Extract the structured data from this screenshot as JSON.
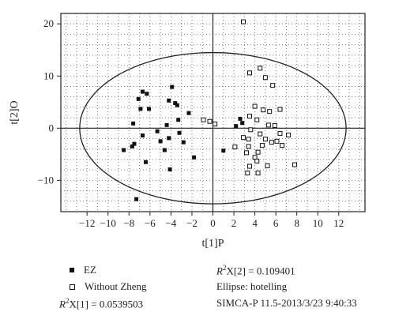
{
  "chart_data": {
    "type": "scatter",
    "xlabel": "t[1]P",
    "ylabel": "t[2]O",
    "xlim": [
      -14.5,
      14.5
    ],
    "ylim": [
      -16,
      22
    ],
    "xticks": [
      -12,
      -10,
      -8,
      -6,
      -4,
      -2,
      0,
      2,
      4,
      6,
      8,
      10,
      12
    ],
    "yticks": [
      -10,
      0,
      10,
      20
    ],
    "grid": "dotted",
    "ellipse": {
      "rx": 12.7,
      "ry": 14.5,
      "label": "Ellipse: hotelling"
    },
    "series": [
      {
        "name": "EZ",
        "marker": "filled-square",
        "points": [
          [
            -6.7,
            7.0
          ],
          [
            -6.3,
            6.6
          ],
          [
            -7.1,
            5.6
          ],
          [
            -6.9,
            3.7
          ],
          [
            -6.1,
            3.7
          ],
          [
            -7.6,
            0.9
          ],
          [
            -5.3,
            -0.6
          ],
          [
            -6.7,
            -1.4
          ],
          [
            -5.0,
            -2.5
          ],
          [
            -7.5,
            -3.0
          ],
          [
            -7.7,
            -3.5
          ],
          [
            -8.5,
            -4.2
          ],
          [
            -4.6,
            -4.2
          ],
          [
            -6.4,
            -6.5
          ],
          [
            -4.1,
            -7.9
          ],
          [
            -7.3,
            -13.6
          ],
          [
            -3.9,
            7.9
          ],
          [
            -4.2,
            5.3
          ],
          [
            -3.6,
            4.8
          ],
          [
            -3.4,
            4.4
          ],
          [
            -2.3,
            2.9
          ],
          [
            -3.3,
            1.6
          ],
          [
            -4.4,
            0.6
          ],
          [
            -3.2,
            -0.9
          ],
          [
            -4.2,
            -1.9
          ],
          [
            -2.8,
            -2.7
          ],
          [
            -1.8,
            -5.6
          ],
          [
            2.6,
            1.8
          ],
          [
            2.8,
            1.0
          ],
          [
            2.2,
            0.4
          ],
          [
            1.0,
            -4.3
          ]
        ]
      },
      {
        "name": "Without Zheng",
        "marker": "open-square",
        "points": [
          [
            2.9,
            20.4
          ],
          [
            4.5,
            11.5
          ],
          [
            3.5,
            10.6
          ],
          [
            5.0,
            9.7
          ],
          [
            5.7,
            8.2
          ],
          [
            4.0,
            4.2
          ],
          [
            4.8,
            3.5
          ],
          [
            6.4,
            3.6
          ],
          [
            5.4,
            3.2
          ],
          [
            3.5,
            2.3
          ],
          [
            4.2,
            1.6
          ],
          [
            5.3,
            0.6
          ],
          [
            5.9,
            0.5
          ],
          [
            3.6,
            -0.3
          ],
          [
            4.5,
            -1.1
          ],
          [
            6.4,
            -1.0
          ],
          [
            7.2,
            -1.3
          ],
          [
            2.9,
            -1.8
          ],
          [
            3.4,
            -2.1
          ],
          [
            5.0,
            -2.1
          ],
          [
            5.6,
            -2.7
          ],
          [
            6.1,
            -2.5
          ],
          [
            2.1,
            -3.6
          ],
          [
            3.4,
            -3.5
          ],
          [
            4.7,
            -3.3
          ],
          [
            6.6,
            -3.3
          ],
          [
            3.2,
            -4.7
          ],
          [
            4.3,
            -4.6
          ],
          [
            4.0,
            -5.6
          ],
          [
            4.2,
            -6.3
          ],
          [
            3.5,
            -7.3
          ],
          [
            3.3,
            -8.6
          ],
          [
            4.3,
            -8.6
          ],
          [
            5.2,
            -7.2
          ],
          [
            7.8,
            -7.0
          ],
          [
            -0.3,
            1.3
          ],
          [
            0.2,
            0.8
          ],
          [
            -0.9,
            1.6
          ]
        ]
      }
    ]
  },
  "footer": {
    "legend_ez": "EZ",
    "legend_without": "Without Zheng",
    "r2x1_prefix": "X[1] = 0.0539503",
    "r2x2_prefix": "X[2] = 0.109401",
    "r2_symbol": "R",
    "r2_exp": "2",
    "ellipse_text": "Ellipse: hotelling",
    "software_text": "SIMCA-P 11.5-2013/3/23 9:40:33"
  }
}
